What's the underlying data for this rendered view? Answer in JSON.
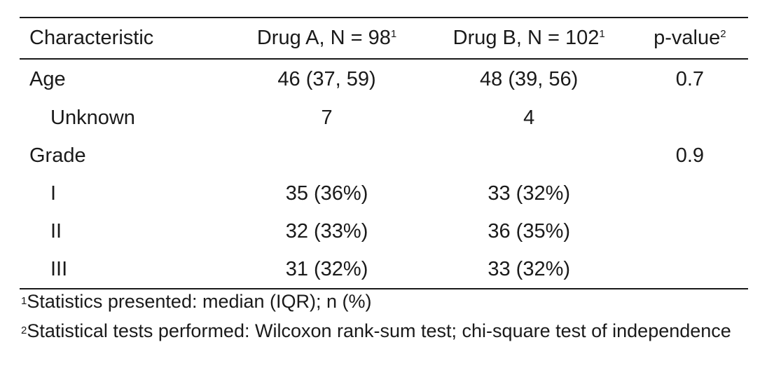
{
  "table": {
    "headers": [
      {
        "text": "Characteristic",
        "note": ""
      },
      {
        "text": "Drug A, N = 98",
        "note": "1"
      },
      {
        "text": "Drug B, N = 102",
        "note": "1"
      },
      {
        "text": "p-value",
        "note": "2"
      }
    ],
    "rows": [
      {
        "label": "Age",
        "drug_a": "46 (37, 59)",
        "drug_b": "48 (39, 56)",
        "p_value": "0.7"
      },
      {
        "label": "Unknown",
        "drug_a": "7",
        "drug_b": "4",
        "p_value": ""
      },
      {
        "label": "Grade",
        "drug_a": "",
        "drug_b": "",
        "p_value": "0.9"
      },
      {
        "label": "I",
        "drug_a": "35 (36%)",
        "drug_b": "33 (32%)",
        "p_value": ""
      },
      {
        "label": "II",
        "drug_a": "32 (33%)",
        "drug_b": "36 (35%)",
        "p_value": ""
      },
      {
        "label": "III",
        "drug_a": "31 (32%)",
        "drug_b": "33 (32%)",
        "p_value": ""
      }
    ]
  },
  "footnotes": [
    {
      "mark": "1",
      "text": "Statistics presented: median (IQR); n (%)"
    },
    {
      "mark": "2",
      "text": "Statistical tests performed: Wilcoxon rank-sum test; chi-square test of independence"
    }
  ]
}
